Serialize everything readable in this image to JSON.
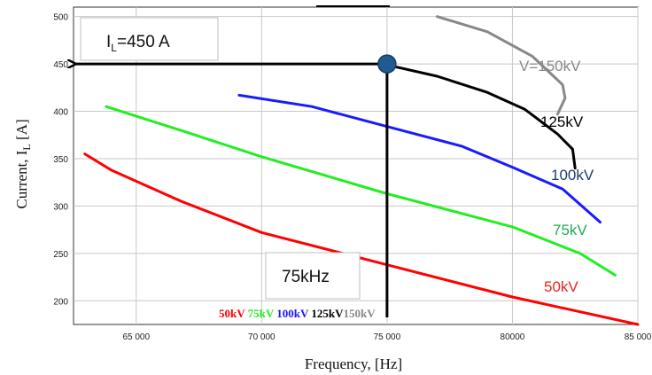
{
  "chart_data": {
    "type": "line",
    "xlabel": "Frequency, [Hz]",
    "ylabel": "Current, I",
    "ylabel_sub": "L",
    "ylabel_unit": "[A]",
    "xlim": [
      62500,
      85000
    ],
    "ylim": [
      175,
      510
    ],
    "x_ticks": [
      65000,
      70000,
      75000,
      80000,
      85000
    ],
    "x_tick_labels": [
      "65 000",
      "70 000",
      "75 000",
      "80000",
      "85 000"
    ],
    "y_ticks": [
      200,
      250,
      300,
      350,
      400,
      450,
      500
    ],
    "grid": true,
    "series": [
      {
        "name": "50kV",
        "color": "#ff0000",
        "label": "50kV",
        "points": [
          [
            62950,
            355
          ],
          [
            64000,
            338
          ],
          [
            66800,
            305
          ],
          [
            70000,
            272
          ],
          [
            75000,
            238
          ],
          [
            80000,
            204
          ],
          [
            85000,
            175
          ]
        ]
      },
      {
        "name": "75kV",
        "color": "#22ee22",
        "label": "75kV",
        "points": [
          [
            63800,
            405
          ],
          [
            67000,
            378
          ],
          [
            70000,
            352
          ],
          [
            75000,
            313
          ],
          [
            80000,
            278
          ],
          [
            82700,
            250
          ],
          [
            84100,
            227
          ]
        ]
      },
      {
        "name": "100kV",
        "color": "#1a1aff",
        "label": "100kV",
        "points": [
          [
            69100,
            417
          ],
          [
            72000,
            405
          ],
          [
            75000,
            384
          ],
          [
            78000,
            363
          ],
          [
            80000,
            341
          ],
          [
            82000,
            318
          ],
          [
            83500,
            283
          ]
        ]
      },
      {
        "name": "125kV",
        "color": "#000000",
        "label": "125kV",
        "points": [
          [
            75000,
            449
          ],
          [
            77000,
            437
          ],
          [
            79000,
            420
          ],
          [
            80500,
            402
          ],
          [
            81800,
            376
          ],
          [
            82400,
            360
          ],
          [
            82500,
            340
          ]
        ]
      },
      {
        "name": "150kV",
        "color": "#888888",
        "label": "V=150kV",
        "points": [
          [
            77000,
            500
          ],
          [
            79000,
            484
          ],
          [
            80800,
            458
          ],
          [
            82000,
            428
          ],
          [
            82100,
            414
          ],
          [
            81800,
            397
          ]
        ]
      }
    ],
    "legend": [
      "50kV",
      "75kV",
      "100kV",
      "125kV",
      "150kV"
    ],
    "annotations": {
      "current_box": {
        "prefix": "I",
        "sub": "L",
        "suffix": "=450 A"
      },
      "frequency_box": "75kHz",
      "marker": {
        "x": 75000,
        "y": 450
      }
    }
  }
}
